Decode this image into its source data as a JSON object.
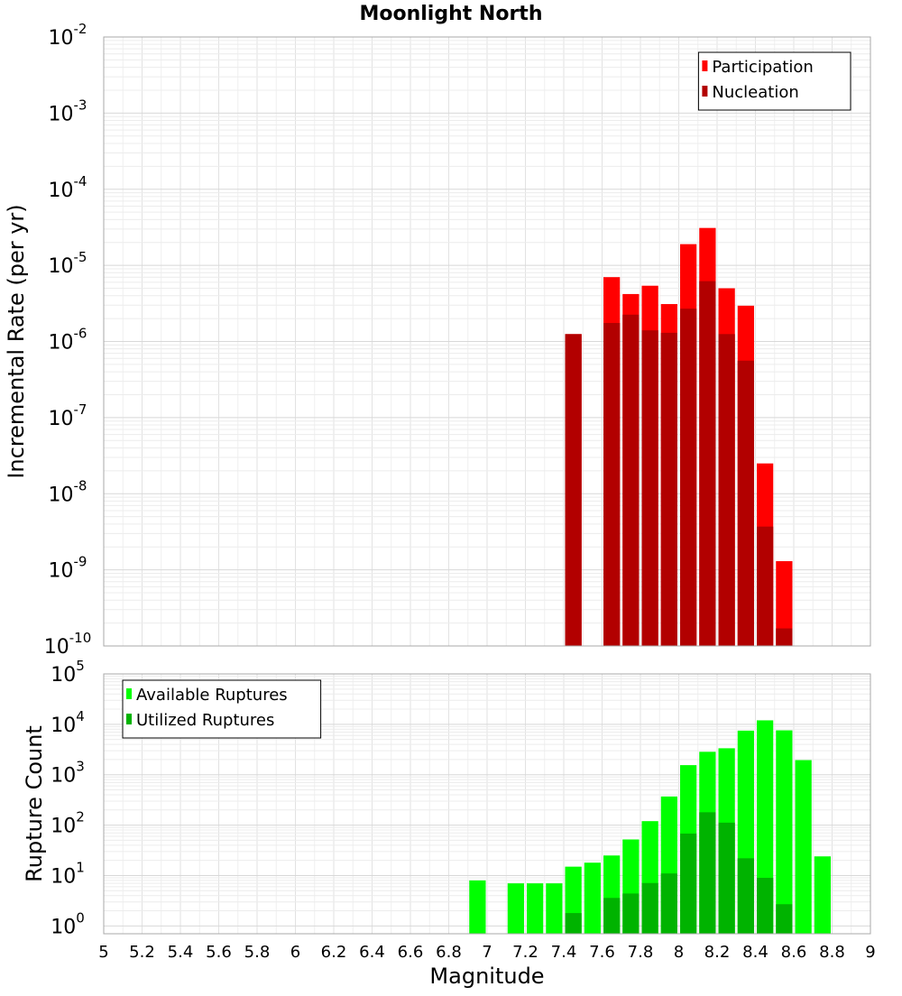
{
  "title": "Moonlight North",
  "chart_data": [
    {
      "type": "bar",
      "ylabel": "Incremental Rate (per yr)",
      "yscale": "log",
      "ylim": [
        1e-10,
        0.01
      ],
      "xlim": [
        5,
        9
      ],
      "bin_width": 0.1,
      "legend": {
        "position": "top-right"
      },
      "series": [
        {
          "name": "Participation",
          "color": "#ff0000",
          "points": [
            {
              "x": 7.45,
              "y": 1.25e-06
            },
            {
              "x": 7.65,
              "y": 7e-06
            },
            {
              "x": 7.75,
              "y": 4.2e-06
            },
            {
              "x": 7.85,
              "y": 5.4e-06
            },
            {
              "x": 7.95,
              "y": 3.1e-06
            },
            {
              "x": 8.05,
              "y": 1.9e-05
            },
            {
              "x": 8.15,
              "y": 3.1e-05
            },
            {
              "x": 8.25,
              "y": 5e-06
            },
            {
              "x": 8.35,
              "y": 2.95e-06
            },
            {
              "x": 8.45,
              "y": 2.5e-08
            },
            {
              "x": 8.55,
              "y": 1.3e-09
            }
          ]
        },
        {
          "name": "Nucleation",
          "color": "#b20000",
          "points": [
            {
              "x": 7.45,
              "y": 1.25e-06
            },
            {
              "x": 7.65,
              "y": 1.75e-06
            },
            {
              "x": 7.75,
              "y": 2.25e-06
            },
            {
              "x": 7.85,
              "y": 1.4e-06
            },
            {
              "x": 7.95,
              "y": 1.3e-06
            },
            {
              "x": 8.05,
              "y": 2.7e-06
            },
            {
              "x": 8.15,
              "y": 6.2e-06
            },
            {
              "x": 8.25,
              "y": 1.25e-06
            },
            {
              "x": 8.35,
              "y": 5.6e-07
            },
            {
              "x": 8.45,
              "y": 3.7e-09
            },
            {
              "x": 8.55,
              "y": 1.7e-10
            }
          ]
        }
      ]
    },
    {
      "type": "bar",
      "xlabel": "Magnitude",
      "ylabel": "Rupture Count",
      "yscale": "log",
      "ylim": [
        0.7,
        100000
      ],
      "xlim": [
        5,
        9
      ],
      "bin_width": 0.1,
      "legend": {
        "position": "top-left"
      },
      "xticks": [
        "5",
        "5.2",
        "5.4",
        "5.6",
        "5.8",
        "6",
        "6.2",
        "6.4",
        "6.6",
        "6.8",
        "7",
        "7.2",
        "7.4",
        "7.6",
        "7.8",
        "8",
        "8.2",
        "8.4",
        "8.6",
        "8.8",
        "9"
      ],
      "series": [
        {
          "name": "Available Ruptures",
          "color": "#00ff00",
          "points": [
            {
              "x": 6.95,
              "y": 8
            },
            {
              "x": 7.15,
              "y": 7
            },
            {
              "x": 7.25,
              "y": 7
            },
            {
              "x": 7.35,
              "y": 7
            },
            {
              "x": 7.45,
              "y": 15
            },
            {
              "x": 7.55,
              "y": 18
            },
            {
              "x": 7.65,
              "y": 25
            },
            {
              "x": 7.75,
              "y": 52
            },
            {
              "x": 7.85,
              "y": 120
            },
            {
              "x": 7.95,
              "y": 370
            },
            {
              "x": 8.05,
              "y": 1550
            },
            {
              "x": 8.15,
              "y": 2850
            },
            {
              "x": 8.25,
              "y": 3350
            },
            {
              "x": 8.35,
              "y": 7500
            },
            {
              "x": 8.45,
              "y": 12000
            },
            {
              "x": 8.55,
              "y": 7600
            },
            {
              "x": 8.65,
              "y": 1950
            },
            {
              "x": 8.75,
              "y": 24
            }
          ]
        },
        {
          "name": "Utilized Ruptures",
          "color": "#00b300",
          "points": [
            {
              "x": 7.45,
              "y": 1.8
            },
            {
              "x": 7.65,
              "y": 3.6
            },
            {
              "x": 7.75,
              "y": 4.4
            },
            {
              "x": 7.85,
              "y": 7.1
            },
            {
              "x": 7.95,
              "y": 11
            },
            {
              "x": 8.05,
              "y": 68
            },
            {
              "x": 8.15,
              "y": 180
            },
            {
              "x": 8.25,
              "y": 112
            },
            {
              "x": 8.35,
              "y": 22
            },
            {
              "x": 8.45,
              "y": 9
            },
            {
              "x": 8.55,
              "y": 2.7
            }
          ]
        }
      ]
    }
  ]
}
